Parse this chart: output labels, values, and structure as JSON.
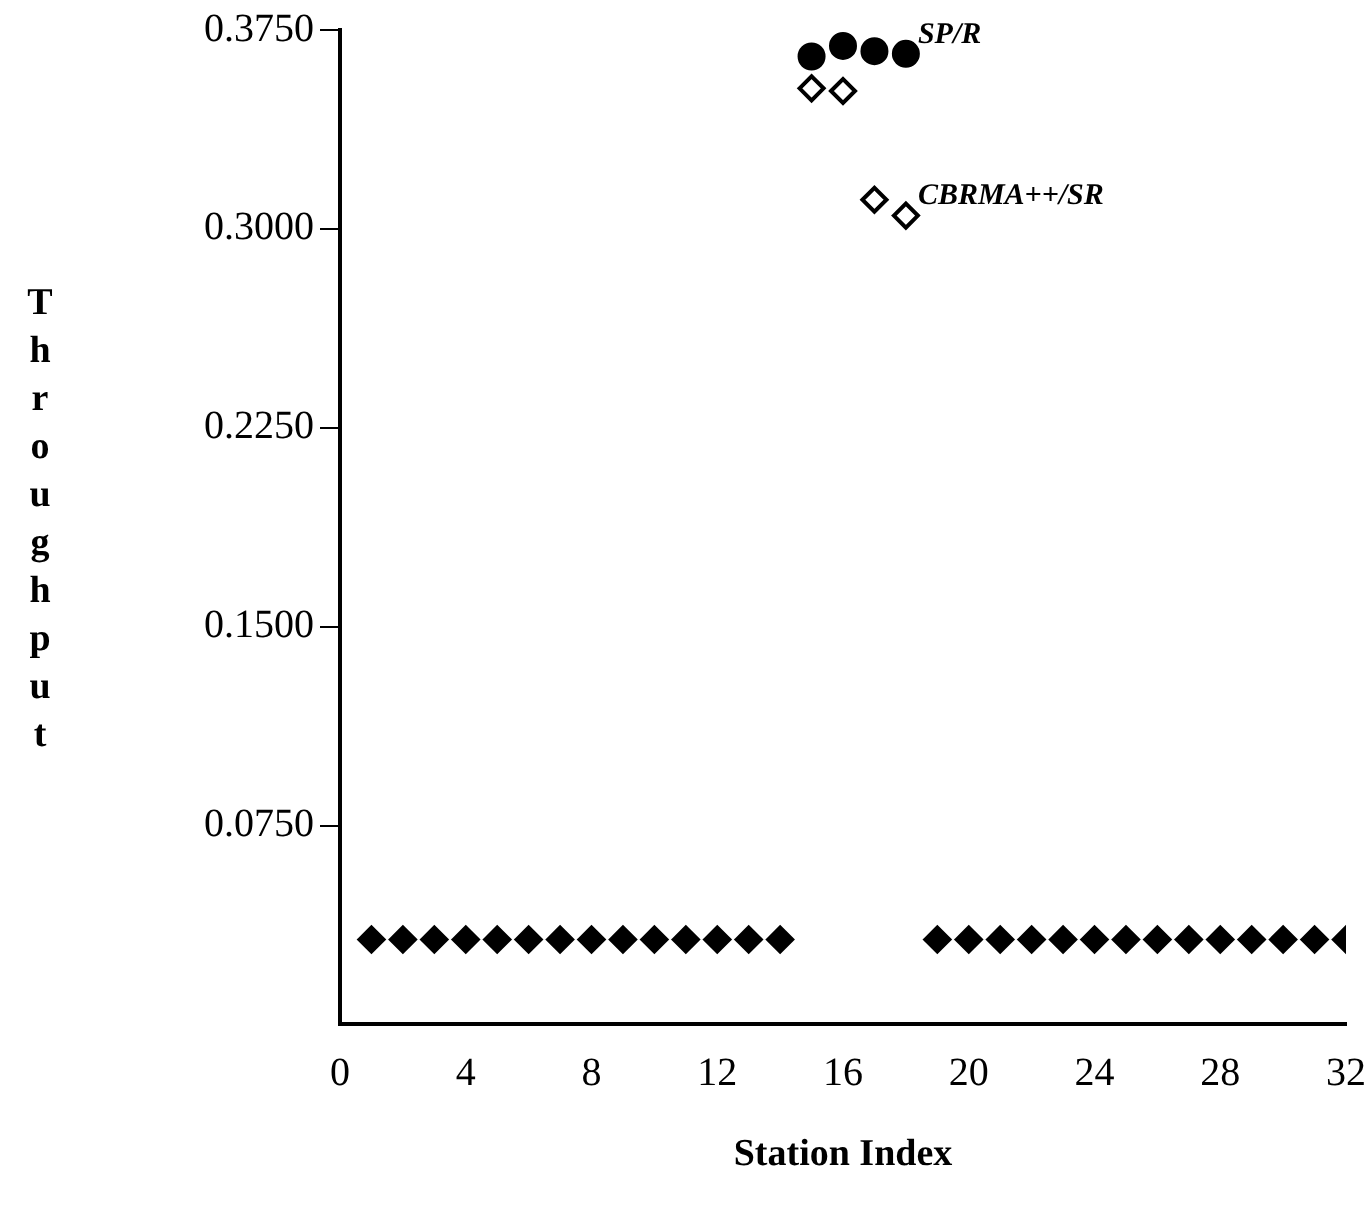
{
  "chart_data": {
    "type": "scatter",
    "xlabel": "Station Index",
    "ylabel": "Throughput",
    "xlim": [
      0,
      32
    ],
    "xticks": [
      0,
      4,
      8,
      12,
      16,
      20,
      24,
      28,
      32
    ],
    "ylim": [
      0,
      0.375
    ],
    "yticks": [
      {
        "value": 0.075,
        "label": "0.0750"
      },
      {
        "value": 0.15,
        "label": "0.1500"
      },
      {
        "value": 0.225,
        "label": "0.2250"
      },
      {
        "value": 0.3,
        "label": "0.3000"
      },
      {
        "value": 0.375,
        "label": "0.3750"
      }
    ],
    "grid": false,
    "legend": false,
    "series": [
      {
        "name": "SP/R",
        "color": "#000000",
        "marker": "circle",
        "x": [
          15,
          16,
          17,
          18
        ],
        "values": [
          0.365,
          0.369,
          0.367,
          0.366
        ]
      },
      {
        "name": "CBRMA++/SR",
        "color": "#000000",
        "marker": "diamond",
        "x": [
          15,
          16,
          17,
          18
        ],
        "values": [
          0.353,
          0.352,
          0.311,
          0.305
        ]
      },
      {
        "color": "#000000",
        "marker": "diamond",
        "x": [
          1,
          2,
          3,
          4,
          5,
          6,
          7,
          8,
          9,
          10,
          11,
          12,
          13,
          14,
          19,
          20,
          21,
          22,
          23,
          24,
          25,
          26,
          27,
          28,
          29,
          30,
          31,
          32
        ],
        "values": [
          0.032,
          0.032,
          0.032,
          0.032,
          0.032,
          0.032,
          0.032,
          0.032,
          0.032,
          0.032,
          0.032,
          0.032,
          0.032,
          0.032,
          0.032,
          0.032,
          0.032,
          0.032,
          0.032,
          0.032,
          0.032,
          0.032,
          0.032,
          0.032,
          0.032,
          0.032,
          0.032,
          0.032
        ]
      }
    ]
  }
}
